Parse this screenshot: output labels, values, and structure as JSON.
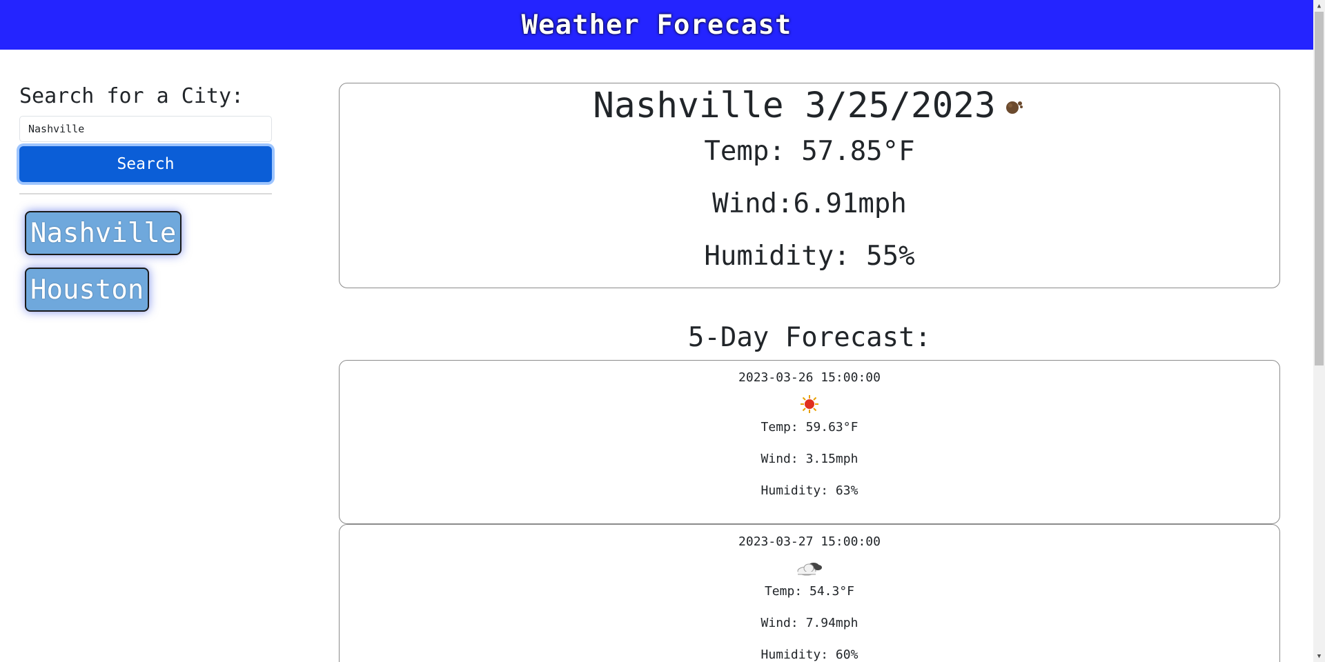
{
  "header": {
    "title": "Weather Forecast"
  },
  "sidebar": {
    "heading": "Search for a City:",
    "search": {
      "value": "Nashville",
      "placeholder": ""
    },
    "search_button_label": "Search",
    "history": [
      "Nashville",
      "Houston"
    ]
  },
  "current": {
    "title": "Nashville 3/25/2023",
    "icon": "moon-cloud-icon",
    "temp": "Temp: 57.85°F",
    "wind": "Wind:6.91mph",
    "humidity": "Humidity: 55%"
  },
  "forecast": {
    "heading": "5-Day Forecast:",
    "days": [
      {
        "datetime": "2023-03-26 15:00:00",
        "icon": "sun-icon",
        "temp": "Temp: 59.63°F",
        "wind": "Wind: 3.15mph",
        "humidity": "Humidity: 63%"
      },
      {
        "datetime": "2023-03-27 15:00:00",
        "icon": "cloud-icon",
        "temp": "Temp: 54.3°F",
        "wind": "Wind: 7.94mph",
        "humidity": "Humidity: 60%"
      }
    ]
  },
  "colors": {
    "header_bg": "#2424ff",
    "search_button_bg": "#0b5ed7",
    "history_button_bg": "#6fa8dc"
  }
}
